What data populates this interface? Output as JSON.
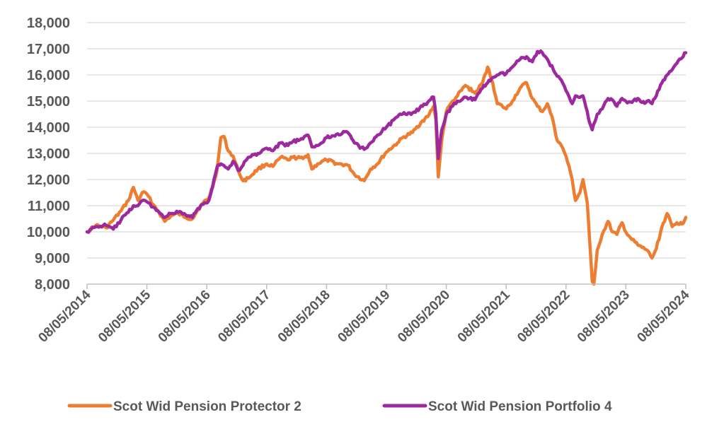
{
  "chart_data": {
    "type": "line",
    "title": "",
    "xlabel": "",
    "ylabel": "",
    "ylim": [
      8000,
      18000
    ],
    "y_ticks": [
      "8,000",
      "9,000",
      "10,000",
      "11,000",
      "12,000",
      "13,000",
      "14,000",
      "15,000",
      "16,000",
      "17,000",
      "18,000"
    ],
    "x_ticks": [
      "08/05/2014",
      "08/05/2015",
      "08/05/2016",
      "08/05/2017",
      "08/05/2018",
      "08/05/2019",
      "08/05/2020",
      "08/05/2021",
      "08/05/2022",
      "08/05/2023",
      "08/05/2024"
    ],
    "x_range": [
      "2014-05-08",
      "2024-05-08"
    ],
    "grid": "horizontal",
    "legend_position": "bottom",
    "series": [
      {
        "name": "Scot Wid Pension Protector 2",
        "color": "#ED7D31",
        "points": [
          [
            "2014-05-08",
            10000
          ],
          [
            "2014-07-01",
            10250
          ],
          [
            "2014-09-01",
            10150
          ],
          [
            "2014-10-15",
            10450
          ],
          [
            "2014-12-01",
            10800
          ],
          [
            "2015-01-15",
            11200
          ],
          [
            "2015-02-15",
            11700
          ],
          [
            "2015-03-15",
            11200
          ],
          [
            "2015-04-10",
            11500
          ],
          [
            "2015-05-08",
            11450
          ],
          [
            "2015-06-15",
            11050
          ],
          [
            "2015-07-15",
            10800
          ],
          [
            "2015-08-25",
            10400
          ],
          [
            "2015-09-30",
            10600
          ],
          [
            "2015-11-15",
            10700
          ],
          [
            "2015-12-31",
            10550
          ],
          [
            "2016-02-10",
            10500
          ],
          [
            "2016-03-15",
            10850
          ],
          [
            "2016-04-15",
            11100
          ],
          [
            "2016-05-20",
            11300
          ],
          [
            "2016-06-20",
            11900
          ],
          [
            "2016-07-10",
            12400
          ],
          [
            "2016-08-01",
            13600
          ],
          [
            "2016-08-20",
            13650
          ],
          [
            "2016-09-15",
            13100
          ],
          [
            "2016-10-15",
            12900
          ],
          [
            "2016-11-15",
            12350
          ],
          [
            "2016-12-15",
            11950
          ],
          [
            "2017-01-15",
            12050
          ],
          [
            "2017-03-15",
            12400
          ],
          [
            "2017-05-08",
            12600
          ],
          [
            "2017-06-15",
            12500
          ],
          [
            "2017-08-01",
            12850
          ],
          [
            "2017-09-15",
            12750
          ],
          [
            "2017-10-15",
            12850
          ],
          [
            "2017-12-15",
            12800
          ],
          [
            "2018-01-15",
            12950
          ],
          [
            "2018-02-08",
            12400
          ],
          [
            "2018-03-15",
            12600
          ],
          [
            "2018-05-08",
            12750
          ],
          [
            "2018-07-15",
            12600
          ],
          [
            "2018-09-15",
            12550
          ],
          [
            "2018-10-25",
            12200
          ],
          [
            "2018-12-24",
            11950
          ],
          [
            "2019-01-31",
            12400
          ],
          [
            "2019-03-15",
            12600
          ],
          [
            "2019-05-08",
            13050
          ],
          [
            "2019-07-15",
            13400
          ],
          [
            "2019-08-15",
            13600
          ],
          [
            "2019-10-15",
            13800
          ],
          [
            "2019-12-15",
            14250
          ],
          [
            "2020-01-15",
            14400
          ],
          [
            "2020-02-20",
            14800
          ],
          [
            "2020-03-05",
            14300
          ],
          [
            "2020-03-20",
            12100
          ],
          [
            "2020-04-10",
            13500
          ],
          [
            "2020-05-08",
            14600
          ],
          [
            "2020-06-15",
            15000
          ],
          [
            "2020-07-15",
            15200
          ],
          [
            "2020-09-01",
            15600
          ],
          [
            "2020-10-30",
            15300
          ],
          [
            "2020-12-15",
            15700
          ],
          [
            "2021-01-15",
            16300
          ],
          [
            "2021-02-15",
            15700
          ],
          [
            "2021-03-15",
            14900
          ],
          [
            "2021-04-15",
            14800
          ],
          [
            "2021-05-08",
            14700
          ],
          [
            "2021-06-15",
            15000
          ],
          [
            "2021-08-01",
            15500
          ],
          [
            "2021-09-10",
            15700
          ],
          [
            "2021-10-15",
            15100
          ],
          [
            "2021-11-15",
            14800
          ],
          [
            "2021-12-15",
            14600
          ],
          [
            "2022-01-15",
            14900
          ],
          [
            "2022-02-20",
            14200
          ],
          [
            "2022-03-15",
            13500
          ],
          [
            "2022-04-10",
            13300
          ],
          [
            "2022-05-08",
            12900
          ],
          [
            "2022-06-15",
            12000
          ],
          [
            "2022-07-05",
            11200
          ],
          [
            "2022-08-01",
            11500
          ],
          [
            "2022-08-20",
            12000
          ],
          [
            "2022-09-15",
            11100
          ],
          [
            "2022-09-28",
            9800
          ],
          [
            "2022-10-15",
            8100
          ],
          [
            "2022-10-25",
            8000
          ],
          [
            "2022-11-15",
            9300
          ],
          [
            "2022-12-15",
            9900
          ],
          [
            "2023-01-20",
            10400
          ],
          [
            "2023-02-15",
            10000
          ],
          [
            "2023-03-15",
            9900
          ],
          [
            "2023-04-15",
            10350
          ],
          [
            "2023-05-08",
            10000
          ],
          [
            "2023-06-15",
            9700
          ],
          [
            "2023-07-20",
            9500
          ],
          [
            "2023-08-15",
            9400
          ],
          [
            "2023-09-15",
            9300
          ],
          [
            "2023-10-15",
            9000
          ],
          [
            "2023-11-10",
            9350
          ],
          [
            "2023-12-15",
            10200
          ],
          [
            "2024-01-15",
            10700
          ],
          [
            "2024-02-15",
            10200
          ],
          [
            "2024-03-15",
            10350
          ],
          [
            "2024-04-15",
            10300
          ],
          [
            "2024-05-08",
            10550
          ]
        ]
      },
      {
        "name": "Scot Wid Pension Portfolio 4",
        "color": "#9C2A9E",
        "points": [
          [
            "2014-05-08",
            10000
          ],
          [
            "2014-07-01",
            10200
          ],
          [
            "2014-09-01",
            10250
          ],
          [
            "2014-10-15",
            10100
          ],
          [
            "2014-12-01",
            10450
          ],
          [
            "2015-01-15",
            10750
          ],
          [
            "2015-02-15",
            11000
          ],
          [
            "2015-03-15",
            11000
          ],
          [
            "2015-04-10",
            11200
          ],
          [
            "2015-05-08",
            11150
          ],
          [
            "2015-06-15",
            10950
          ],
          [
            "2015-07-15",
            10800
          ],
          [
            "2015-08-25",
            10550
          ],
          [
            "2015-09-30",
            10700
          ],
          [
            "2015-11-15",
            10750
          ],
          [
            "2015-12-31",
            10650
          ],
          [
            "2016-02-10",
            10550
          ],
          [
            "2016-03-15",
            10900
          ],
          [
            "2016-04-15",
            11050
          ],
          [
            "2016-05-20",
            11200
          ],
          [
            "2016-06-20",
            12000
          ],
          [
            "2016-07-10",
            12500
          ],
          [
            "2016-08-01",
            12600
          ],
          [
            "2016-09-15",
            12400
          ],
          [
            "2016-10-15",
            12700
          ],
          [
            "2016-11-15",
            12350
          ],
          [
            "2016-12-15",
            12550
          ],
          [
            "2017-01-15",
            12850
          ],
          [
            "2017-03-15",
            13000
          ],
          [
            "2017-05-08",
            13200
          ],
          [
            "2017-06-15",
            13100
          ],
          [
            "2017-08-01",
            13400
          ],
          [
            "2017-09-15",
            13300
          ],
          [
            "2017-10-15",
            13450
          ],
          [
            "2017-12-15",
            13550
          ],
          [
            "2018-01-15",
            13700
          ],
          [
            "2018-02-08",
            13250
          ],
          [
            "2018-03-15",
            13300
          ],
          [
            "2018-05-08",
            13600
          ],
          [
            "2018-07-15",
            13750
          ],
          [
            "2018-09-15",
            13800
          ],
          [
            "2018-10-25",
            13400
          ],
          [
            "2018-12-24",
            13150
          ],
          [
            "2019-01-31",
            13400
          ],
          [
            "2019-03-15",
            13700
          ],
          [
            "2019-05-08",
            14000
          ],
          [
            "2019-07-15",
            14400
          ],
          [
            "2019-08-15",
            14500
          ],
          [
            "2019-10-15",
            14550
          ],
          [
            "2019-12-15",
            14800
          ],
          [
            "2020-01-15",
            14950
          ],
          [
            "2020-02-20",
            15150
          ],
          [
            "2020-03-05",
            14500
          ],
          [
            "2020-03-20",
            12800
          ],
          [
            "2020-04-10",
            13900
          ],
          [
            "2020-05-08",
            14500
          ],
          [
            "2020-06-15",
            14800
          ],
          [
            "2020-07-15",
            15000
          ],
          [
            "2020-09-01",
            15150
          ],
          [
            "2020-10-30",
            15050
          ],
          [
            "2020-12-15",
            15500
          ],
          [
            "2021-01-15",
            15700
          ],
          [
            "2021-02-15",
            15900
          ],
          [
            "2021-03-15",
            16000
          ],
          [
            "2021-05-08",
            16050
          ],
          [
            "2021-06-15",
            16300
          ],
          [
            "2021-08-01",
            16600
          ],
          [
            "2021-09-10",
            16700
          ],
          [
            "2021-10-15",
            16500
          ],
          [
            "2021-11-15",
            16900
          ],
          [
            "2021-12-15",
            16850
          ],
          [
            "2022-01-15",
            16600
          ],
          [
            "2022-02-20",
            16200
          ],
          [
            "2022-03-15",
            15950
          ],
          [
            "2022-04-10",
            15800
          ],
          [
            "2022-05-08",
            15400
          ],
          [
            "2022-06-15",
            14900
          ],
          [
            "2022-07-05",
            15200
          ],
          [
            "2022-08-20",
            15200
          ],
          [
            "2022-09-15",
            14600
          ],
          [
            "2022-09-28",
            14200
          ],
          [
            "2022-10-15",
            13900
          ],
          [
            "2022-11-15",
            14500
          ],
          [
            "2022-12-15",
            14700
          ],
          [
            "2023-01-20",
            15100
          ],
          [
            "2023-02-15",
            15050
          ],
          [
            "2023-03-15",
            14800
          ],
          [
            "2023-04-15",
            15100
          ],
          [
            "2023-05-08",
            15000
          ],
          [
            "2023-06-15",
            14950
          ],
          [
            "2023-07-20",
            15100
          ],
          [
            "2023-08-15",
            14950
          ],
          [
            "2023-09-15",
            15000
          ],
          [
            "2023-10-15",
            14900
          ],
          [
            "2023-11-10",
            15200
          ],
          [
            "2023-12-15",
            15700
          ],
          [
            "2024-01-15",
            16000
          ],
          [
            "2024-02-15",
            16200
          ],
          [
            "2024-03-15",
            16450
          ],
          [
            "2024-04-15",
            16650
          ],
          [
            "2024-05-08",
            16850
          ]
        ]
      }
    ]
  }
}
